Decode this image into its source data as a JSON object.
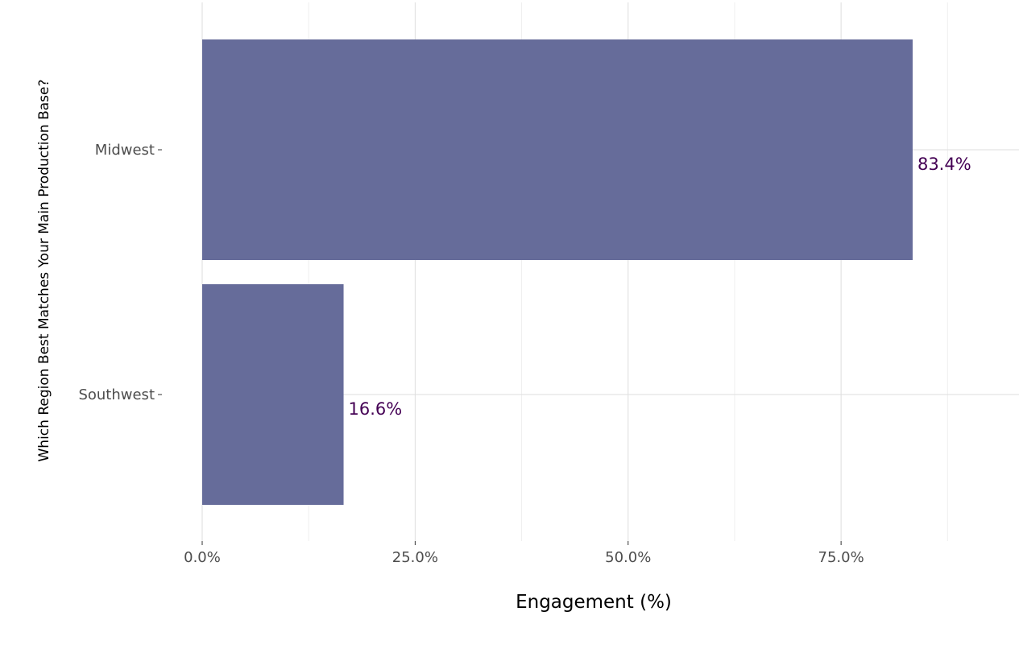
{
  "chart_data": {
    "type": "bar",
    "orientation": "horizontal",
    "categories": [
      "Midwest",
      "Southwest"
    ],
    "values": [
      83.4,
      16.6
    ],
    "value_labels": [
      "83.4%",
      "16.6%"
    ],
    "xlabel": "Engagement (%)",
    "ylabel": "Which Region Best Matches Your Main Production Base?",
    "xlim": [
      0,
      96
    ],
    "x_ticks": [
      0,
      25,
      50,
      75
    ],
    "x_tick_labels": [
      "0.0%",
      "25.0%",
      "50.0%",
      "75.0%"
    ],
    "grid": true,
    "legend": "none",
    "colors": {
      "bar": "#666c9a",
      "label": "#440154",
      "grid_major": "#dedede",
      "grid_minor": "#efefef"
    }
  }
}
